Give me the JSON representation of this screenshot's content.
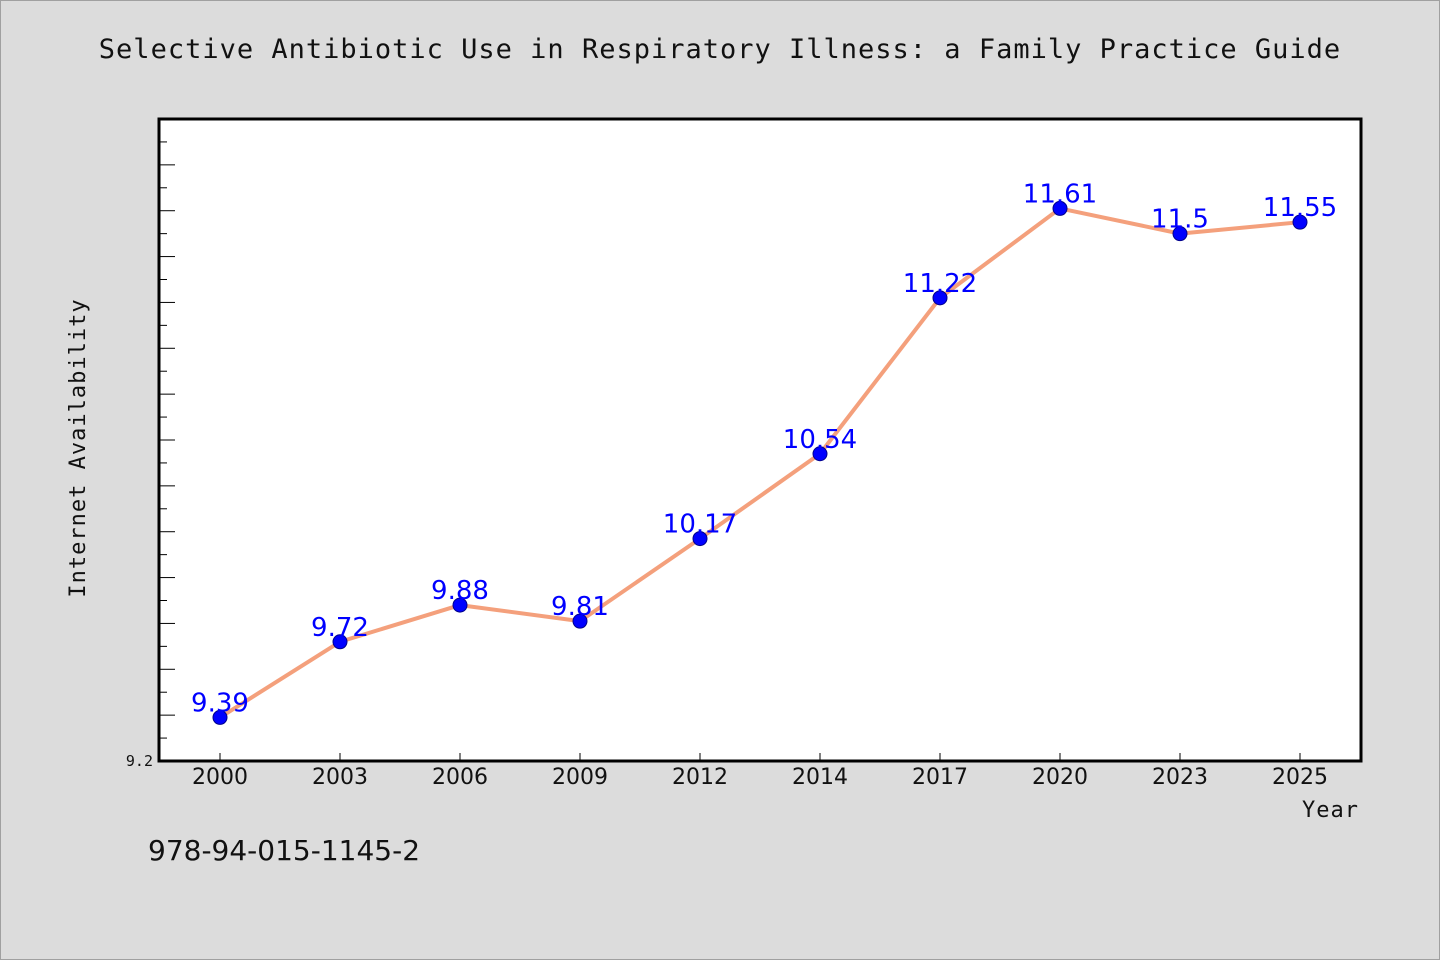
{
  "title": "Selective Antibiotic Use in Respiratory Illness: a Family Practice Guide",
  "isbn": "978-94-015-1145-2",
  "chart_data": {
    "type": "line",
    "title": "Selective Antibiotic Use in Respiratory Illness: a Family Practice Guide",
    "xlabel": "Year",
    "ylabel": "Internet Availability",
    "categories": [
      "2000",
      "2003",
      "2006",
      "2009",
      "2012",
      "2014",
      "2017",
      "2020",
      "2023",
      "2025"
    ],
    "series": [
      {
        "values": [
          9.39,
          9.72,
          9.88,
          9.81,
          10.17,
          10.54,
          11.22,
          11.61,
          11.5,
          11.55
        ]
      }
    ],
    "data_labels": [
      "9.39",
      "9.72",
      "9.88",
      "9.81",
      "10.17",
      "10.54",
      "11.22",
      "11.61",
      "11.5",
      "11.55"
    ],
    "y_tick_labels": [
      "9.2"
    ],
    "ylim": [
      9.2,
      12.0
    ],
    "line_color": "#f4a07c",
    "marker_color": "#0000ff",
    "label_color": "#0000ff",
    "grid": false,
    "legend": "none"
  }
}
